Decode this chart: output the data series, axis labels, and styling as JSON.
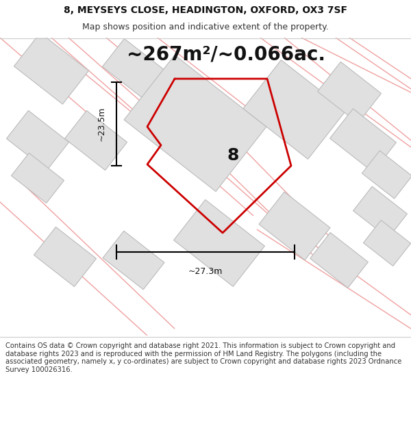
{
  "title_line1": "8, MEYSEYS CLOSE, HEADINGTON, OXFORD, OX3 7SF",
  "title_line2": "Map shows position and indicative extent of the property.",
  "area_text": "~267m²/~0.066ac.",
  "label_8": "8",
  "dim_h": "~23.5m",
  "dim_w": "~27.3m",
  "footer_text": "Contains OS data © Crown copyright and database right 2021. This information is subject to Crown copyright and database rights 2023 and is reproduced with the permission of HM Land Registry. The polygons (including the associated geometry, namely x, y co-ordinates) are subject to Crown copyright and database rights 2023 Ordnance Survey 100026316.",
  "bg_color": "#ebebeb",
  "map_bg": "#ebebeb",
  "property_color": "#cc0000",
  "building_fill": "#e0e0e0",
  "building_stroke": "#bbbbbb",
  "road_color": "#f0a0a0",
  "title_fontsize": 10,
  "subtitle_fontsize": 9,
  "area_fontsize": 20,
  "label_fontsize": 18,
  "dim_fontsize": 9,
  "footer_fontsize": 7.2
}
